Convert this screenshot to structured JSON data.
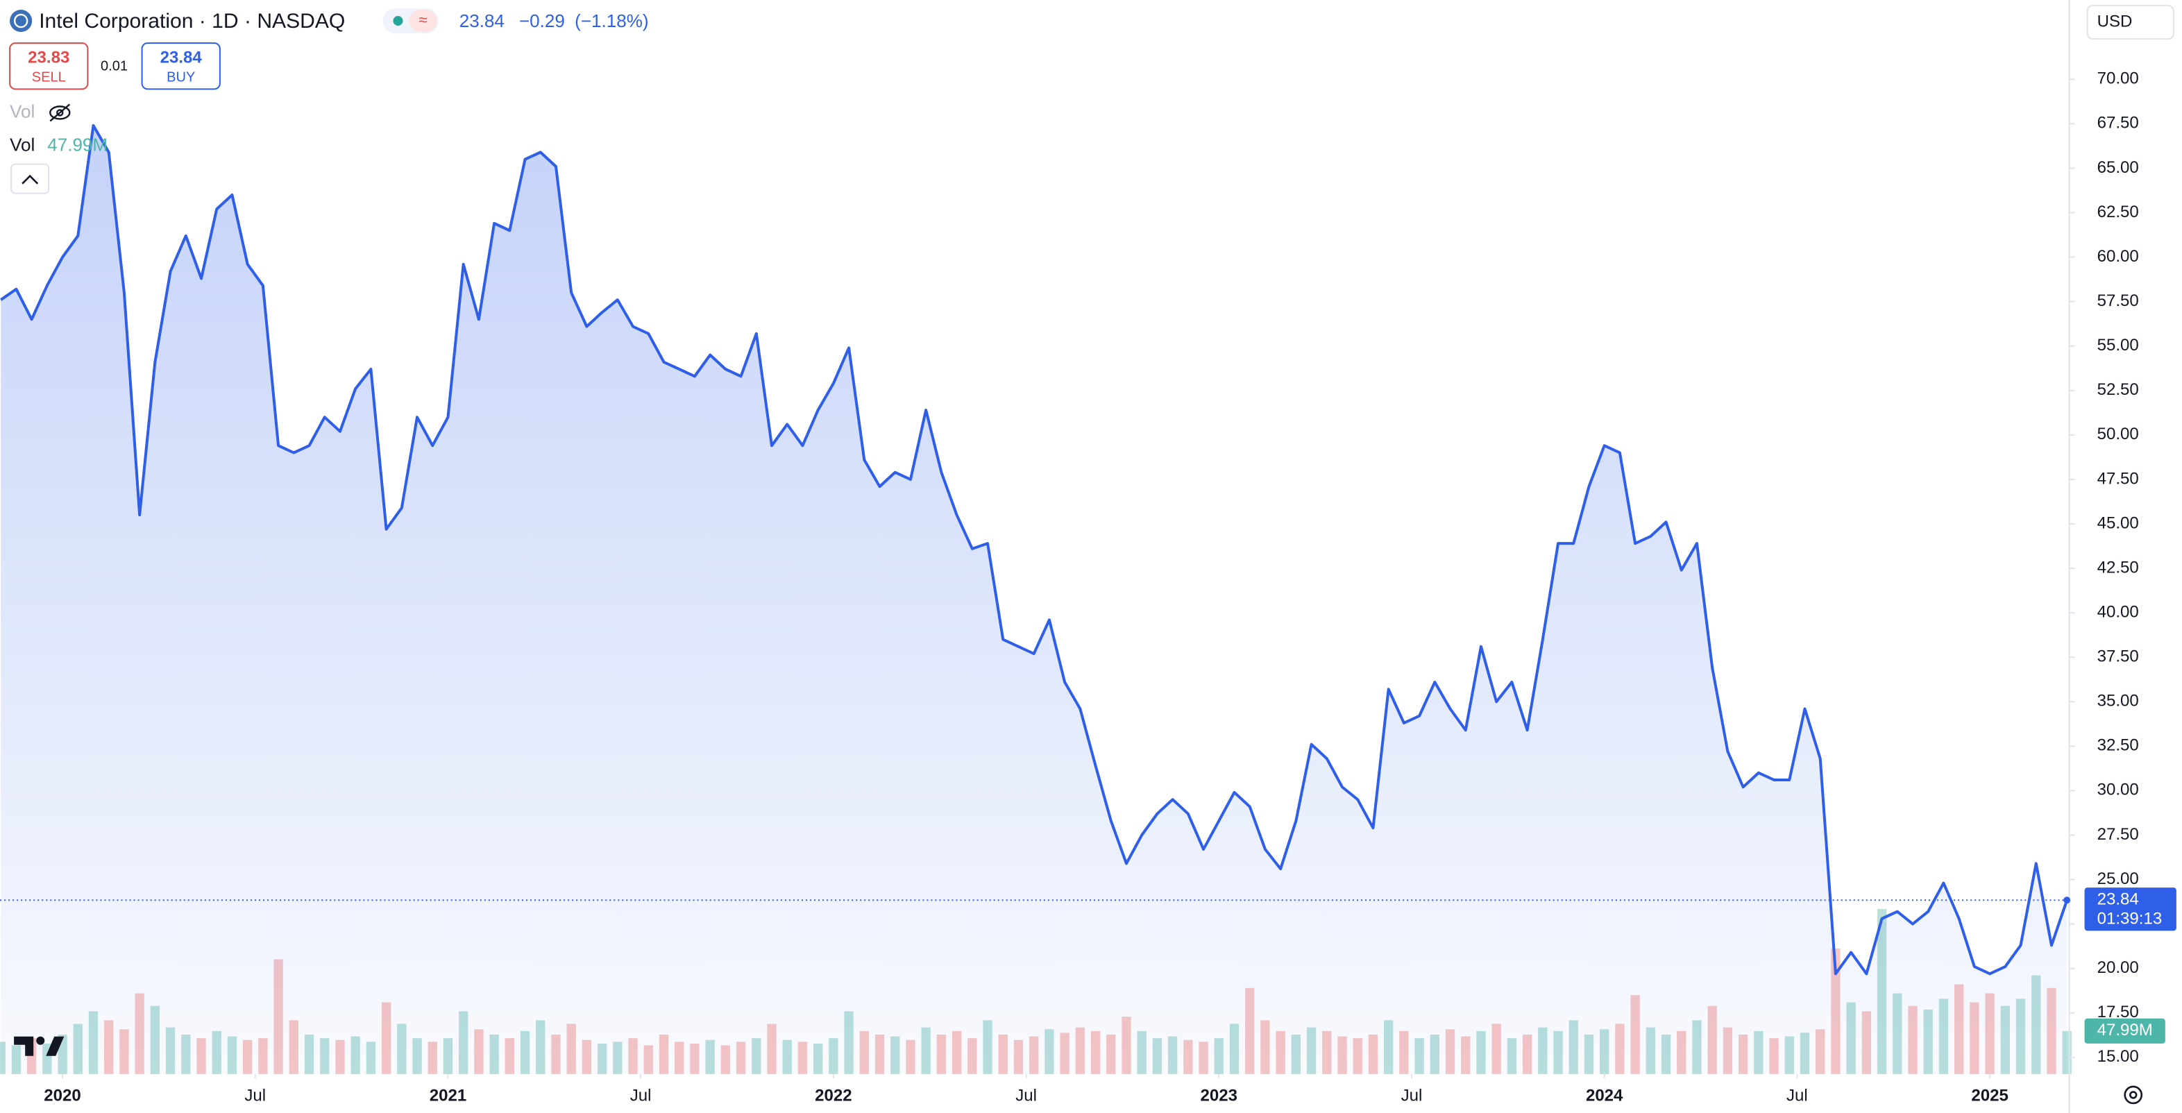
{
  "header": {
    "symbol": "Intel Corporation · 1D · NASDAQ",
    "change": "−0.29",
    "change_pct": "(−1.18%)",
    "sell_price": 23.83,
    "sell_label": "SELL",
    "spread": 0.01,
    "buy_price": 23.84,
    "buy_label": "BUY",
    "volume_label": "47.99M",
    "currency": "USD",
    "countdown": "01:39:13"
  },
  "chart_data": {
    "type": "area",
    "color": "#2f5fe8",
    "x": [
      2019.84,
      2019.88,
      2019.92,
      2019.96,
      2020.0,
      2020.04,
      2020.08,
      2020.12,
      2020.16,
      2020.2,
      2020.24,
      2020.28,
      2020.32,
      2020.36,
      2020.4,
      2020.44,
      2020.48,
      2020.52,
      2020.56,
      2020.6,
      2020.64,
      2020.68,
      2020.72,
      2020.76,
      2020.8,
      2020.84,
      2020.88,
      2020.92,
      2020.96,
      2021.0,
      2021.04,
      2021.08,
      2021.12,
      2021.16,
      2021.2,
      2021.24,
      2021.28,
      2021.32,
      2021.36,
      2021.4,
      2021.44,
      2021.48,
      2021.52,
      2021.56,
      2021.6,
      2021.64,
      2021.68,
      2021.72,
      2021.76,
      2021.8,
      2021.84,
      2021.88,
      2021.92,
      2021.96,
      2022.0,
      2022.04,
      2022.08,
      2022.12,
      2022.16,
      2022.2,
      2022.24,
      2022.28,
      2022.32,
      2022.36,
      2022.4,
      2022.44,
      2022.48,
      2022.52,
      2022.56,
      2022.6,
      2022.64,
      2022.68,
      2022.72,
      2022.76,
      2022.8,
      2022.84,
      2022.88,
      2022.92,
      2022.96,
      2023.0,
      2023.04,
      2023.08,
      2023.12,
      2023.16,
      2023.2,
      2023.24,
      2023.28,
      2023.32,
      2023.36,
      2023.4,
      2023.44,
      2023.48,
      2023.52,
      2023.56,
      2023.6,
      2023.64,
      2023.68,
      2023.72,
      2023.76,
      2023.8,
      2023.84,
      2023.88,
      2023.92,
      2023.96,
      2024.0,
      2024.04,
      2024.08,
      2024.12,
      2024.16,
      2024.2,
      2024.24,
      2024.28,
      2024.32,
      2024.36,
      2024.4,
      2024.44,
      2024.48,
      2024.52,
      2024.56,
      2024.6,
      2024.64,
      2024.68,
      2024.72,
      2024.76,
      2024.8,
      2024.84,
      2024.88,
      2024.92,
      2024.96,
      2025.0,
      2025.04,
      2025.08,
      2025.12,
      2025.16,
      2025.2
    ],
    "values": [
      57.6,
      58.2,
      56.5,
      58.4,
      60.0,
      61.2,
      67.4,
      65.9,
      58.0,
      45.5,
      54.1,
      59.2,
      61.2,
      58.8,
      62.7,
      63.5,
      59.6,
      58.4,
      49.4,
      49.0,
      49.4,
      51.0,
      50.2,
      52.6,
      53.7,
      44.7,
      45.9,
      51.0,
      49.4,
      51.0,
      59.6,
      56.5,
      61.9,
      61.5,
      65.5,
      65.9,
      65.1,
      58.0,
      56.1,
      56.9,
      57.6,
      56.1,
      55.7,
      54.1,
      53.7,
      53.3,
      54.5,
      53.7,
      53.3,
      55.7,
      49.4,
      50.6,
      49.4,
      51.4,
      52.9,
      54.9,
      48.6,
      47.1,
      47.9,
      47.5,
      51.4,
      47.9,
      45.5,
      43.6,
      43.9,
      38.5,
      38.1,
      37.7,
      39.6,
      36.1,
      34.6,
      31.4,
      28.3,
      25.9,
      27.5,
      28.7,
      29.5,
      28.7,
      26.7,
      28.3,
      29.9,
      29.1,
      26.7,
      25.6,
      28.3,
      32.6,
      31.8,
      30.2,
      29.5,
      27.9,
      35.7,
      33.8,
      34.2,
      36.1,
      34.6,
      33.4,
      38.1,
      35.0,
      36.1,
      33.4,
      38.5,
      43.9,
      43.9,
      47.1,
      49.4,
      49.0,
      43.9,
      44.3,
      45.1,
      42.4,
      43.9,
      36.9,
      32.2,
      30.2,
      31.0,
      30.6,
      30.6,
      34.6,
      31.8,
      19.7,
      20.9,
      19.7,
      22.8,
      23.2,
      22.5,
      23.2,
      24.8,
      22.8,
      20.1,
      19.7,
      20.1,
      21.3,
      25.9,
      21.3,
      23.84
    ],
    "volume": {
      "name": "Vol",
      "up_color": "#a7d9d2",
      "down_color": "#f6b8b6",
      "ylim": [
        0,
        450
      ],
      "values": [
        36,
        32,
        40,
        34,
        44,
        56,
        70,
        60,
        50,
        90,
        76,
        52,
        44,
        40,
        48,
        42,
        38,
        40,
        128,
        60,
        44,
        40,
        38,
        42,
        36,
        80,
        56,
        40,
        36,
        40,
        70,
        50,
        44,
        40,
        48,
        60,
        44,
        56,
        38,
        34,
        36,
        40,
        32,
        44,
        36,
        34,
        38,
        32,
        36,
        40,
        56,
        38,
        36,
        34,
        40,
        70,
        48,
        44,
        42,
        38,
        52,
        44,
        48,
        40,
        60,
        44,
        38,
        42,
        50,
        46,
        52,
        48,
        44,
        64,
        48,
        40,
        42,
        38,
        36,
        40,
        56,
        96,
        60,
        48,
        44,
        52,
        48,
        42,
        40,
        44,
        60,
        48,
        40,
        44,
        50,
        42,
        48,
        56,
        40,
        44,
        52,
        48,
        60,
        44,
        50,
        56,
        88,
        52,
        44,
        48,
        60,
        76,
        52,
        44,
        48,
        40,
        42,
        46,
        50,
        140,
        80,
        70,
        184,
        90,
        76,
        72,
        84,
        100,
        80,
        90,
        76,
        84,
        110,
        96,
        47.99
      ]
    },
    "xlim": [
      2019.838,
      2025.206
    ],
    "ylim": [
      14.06,
      74.46
    ],
    "xticks": [
      2020,
      {
        "value": 2020.5,
        "label": "Jul"
      },
      2021,
      {
        "value": 2021.5,
        "label": "Jul"
      },
      2022,
      {
        "value": 2022.5,
        "label": "Jul"
      },
      2023,
      {
        "value": 2023.5,
        "label": "Jul"
      },
      2024,
      {
        "value": 2024.5,
        "label": "Jul"
      },
      2025
    ],
    "yticks": [
      {
        "value": 15,
        "label": "15.00"
      },
      {
        "value": 17.5,
        "label": "17.50"
      },
      {
        "value": 20,
        "label": "20.00"
      },
      {
        "value": 22.5,
        "label": "22.50"
      },
      {
        "value": 25,
        "label": "25.00"
      },
      {
        "value": 27.5,
        "label": "27.50"
      },
      {
        "value": 30,
        "label": "30.00"
      },
      {
        "value": 32.5,
        "label": "32.50"
      },
      {
        "value": 35,
        "label": "35.00"
      },
      {
        "value": 37.5,
        "label": "37.50"
      },
      {
        "value": 40,
        "label": "40.00"
      },
      {
        "value": 42.5,
        "label": "42.50"
      },
      {
        "value": 45,
        "label": "45.00"
      },
      {
        "value": 47.5,
        "label": "47.50"
      },
      {
        "value": 50,
        "label": "50.00"
      },
      {
        "value": 52.5,
        "label": "52.50"
      },
      {
        "value": 55,
        "label": "55.00"
      },
      {
        "value": 57.5,
        "label": "57.50"
      },
      {
        "value": 60,
        "label": "60.00"
      },
      {
        "value": 62.5,
        "label": "62.50"
      },
      {
        "value": 65,
        "label": "65.00"
      },
      {
        "value": 67.5,
        "label": "67.50"
      },
      {
        "value": 70,
        "label": "70.00"
      }
    ],
    "grid": false
  }
}
